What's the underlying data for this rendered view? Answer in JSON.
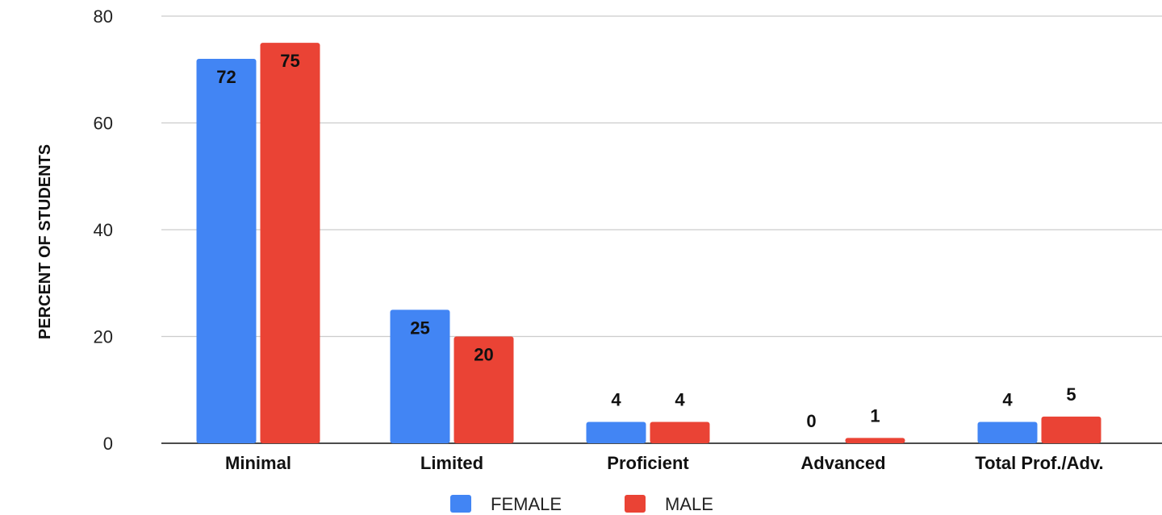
{
  "chart_data": {
    "type": "bar",
    "categories": [
      "Minimal",
      "Limited",
      "Proficient",
      "Advanced",
      "Total Prof./Adv."
    ],
    "series": [
      {
        "name": "FEMALE",
        "color": "#4285f4",
        "values": [
          72,
          25,
          4,
          0,
          4
        ]
      },
      {
        "name": "MALE",
        "color": "#ea4335",
        "values": [
          75,
          20,
          4,
          1,
          5
        ]
      }
    ],
    "ylabel": "PERCENT OF STUDENTS",
    "xlabel": "",
    "ylim": [
      0,
      80
    ],
    "yticks": [
      0,
      20,
      40,
      60,
      80
    ],
    "grid": true,
    "legend_position": "bottom"
  }
}
